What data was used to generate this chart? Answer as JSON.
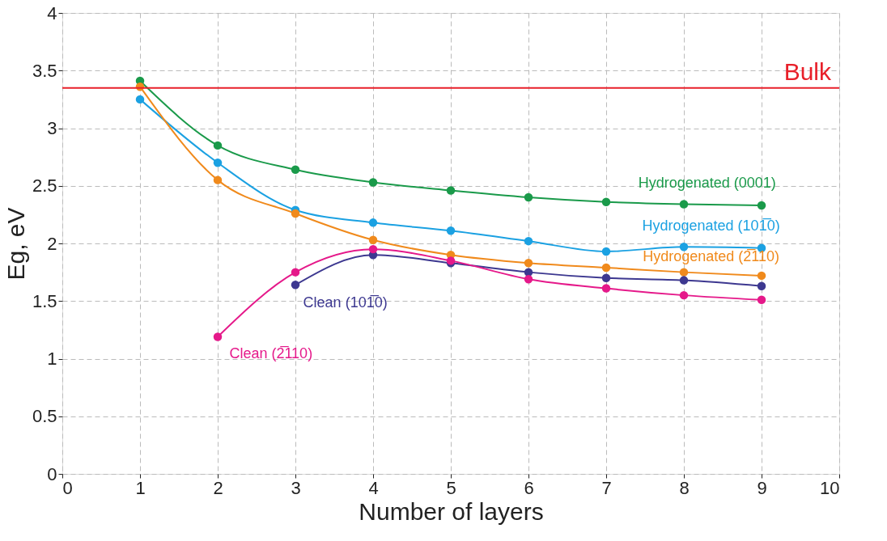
{
  "chart_data": {
    "type": "line",
    "xlabel": "Number of layers",
    "ylabel": "Eg, eV",
    "x": [
      1,
      2,
      3,
      4,
      5,
      6,
      7,
      8,
      9
    ],
    "series": [
      {
        "name": "Hydrogenated (0001)",
        "color": "#1a9a4a",
        "values": [
          3.41,
          2.85,
          2.64,
          2.53,
          2.46,
          2.4,
          2.36,
          2.34,
          2.33
        ]
      },
      {
        "name": "Hydrogenated (101̅0)",
        "color": "#1ba1e2",
        "values": [
          3.25,
          2.7,
          2.29,
          2.18,
          2.11,
          2.02,
          1.93,
          1.97,
          1.96
        ]
      },
      {
        "name": "Hydrogenated (2̅110)",
        "color": "#f08a1c",
        "values": [
          3.36,
          2.55,
          2.26,
          2.03,
          1.9,
          1.83,
          1.79,
          1.75,
          1.72
        ]
      },
      {
        "name": "Clean (101̅0)",
        "color": "#3d3890",
        "values": [
          null,
          null,
          1.64,
          1.9,
          1.83,
          1.75,
          1.7,
          1.68,
          1.63
        ]
      },
      {
        "name": "Clean (2̅110)",
        "color": "#e5198a",
        "values": [
          null,
          1.19,
          1.75,
          1.95,
          1.85,
          1.69,
          1.61,
          1.55,
          1.51
        ]
      }
    ],
    "ref_lines": [
      {
        "axis": "y",
        "value": 3.35,
        "label": "Bulk",
        "color": "#e8202a"
      }
    ],
    "xlim": [
      0,
      10
    ],
    "xticks": [
      0,
      1,
      2,
      3,
      4,
      5,
      6,
      7,
      8,
      9,
      10
    ],
    "ylim": [
      0,
      4
    ],
    "yticks": [
      0,
      0.5,
      1,
      1.5,
      2,
      2.5,
      3,
      3.5,
      4
    ],
    "grid": true,
    "marker": "circle",
    "line_style": "solid"
  }
}
